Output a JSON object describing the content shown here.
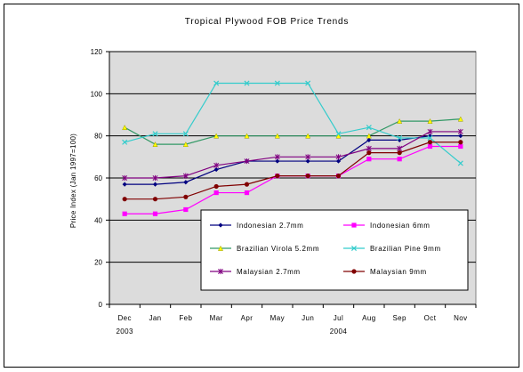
{
  "chart_data": {
    "type": "line",
    "title": "Tropical Plywood FOB Price Trends",
    "ylabel": "Price Index (Jan 1997=100)",
    "xlabel": "",
    "ylim": [
      0,
      120
    ],
    "yticks": [
      0,
      20,
      40,
      60,
      80,
      100,
      120
    ],
    "categories": [
      "Dec",
      "Jan",
      "Feb",
      "Mar",
      "Apr",
      "May",
      "Jun",
      "Jul",
      "Aug",
      "Sep",
      "Oct",
      "Nov"
    ],
    "year_labels": [
      {
        "label": "2003",
        "category": "Dec"
      },
      {
        "label": "2004",
        "category": "Jul"
      }
    ],
    "grid": true,
    "plot_background": "#dcdcdc",
    "legend_position": "inside-bottom-right",
    "series": [
      {
        "name": "Indonesian 2.7mm",
        "color": "#000080",
        "marker": "diamond",
        "values": [
          57,
          57,
          58,
          64,
          68,
          68,
          68,
          68,
          78,
          78,
          80,
          80
        ]
      },
      {
        "name": "Indonesian 6mm",
        "color": "#ff00ff",
        "marker": "square",
        "values": [
          43,
          43,
          45,
          53,
          53,
          61,
          61,
          61,
          69,
          69,
          75,
          75
        ]
      },
      {
        "name": "Brazilian Virola 5.2mm",
        "color": "#339966",
        "marker": "triangle",
        "values": [
          84,
          76,
          76,
          80,
          80,
          80,
          80,
          80,
          80,
          87,
          87,
          88
        ]
      },
      {
        "name": "Brazilian Pine 9mm",
        "color": "#33cccc",
        "marker": "x",
        "values": [
          77,
          81,
          81,
          105,
          105,
          105,
          105,
          81,
          84,
          79,
          79,
          67
        ]
      },
      {
        "name": "Malaysian 2.7mm",
        "color": "#800080",
        "marker": "star",
        "values": [
          60,
          60,
          61,
          66,
          68,
          70,
          70,
          70,
          74,
          74,
          82,
          82
        ]
      },
      {
        "name": "Malaysian 9mm",
        "color": "#800000",
        "marker": "circle",
        "values": [
          50,
          50,
          51,
          56,
          57,
          61,
          61,
          61,
          72,
          72,
          77,
          77
        ]
      }
    ]
  }
}
